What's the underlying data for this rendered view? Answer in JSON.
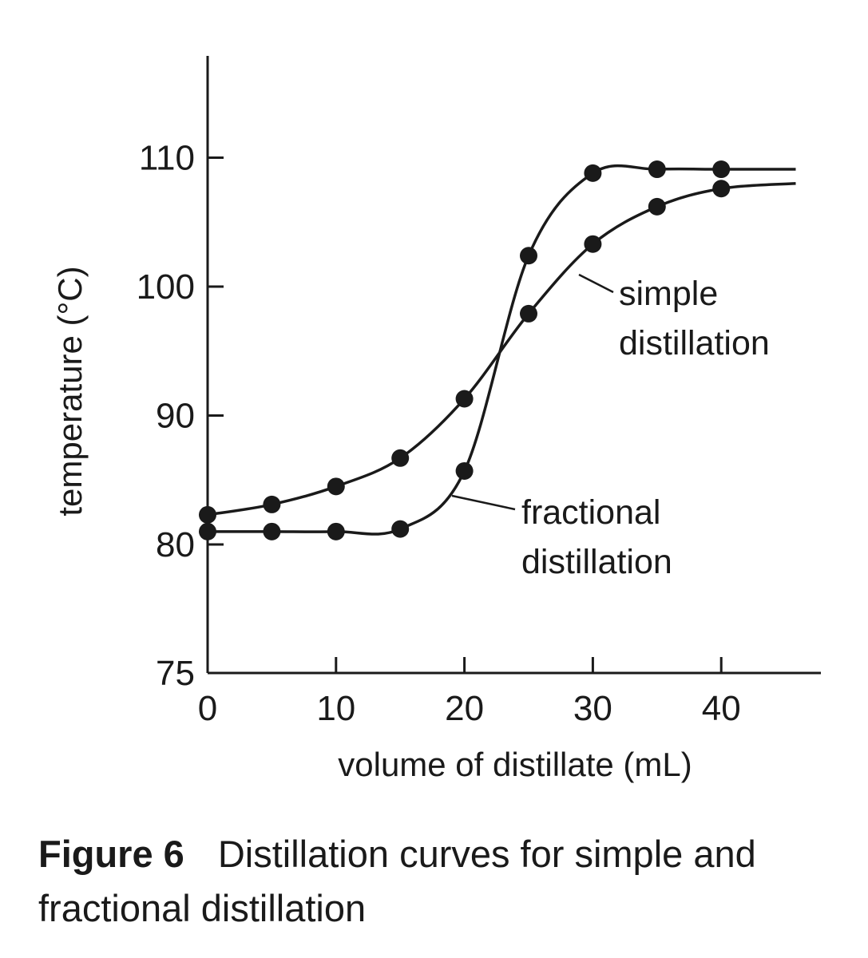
{
  "chart_data": {
    "type": "line",
    "xlabel": "volume of distillate (mL)",
    "ylabel": "temperature (°C)",
    "xlim": [
      0,
      48
    ],
    "ylim": [
      75,
      120
    ],
    "x_ticks": [
      0,
      10,
      20,
      30,
      40
    ],
    "y_ticks": [
      75,
      80,
      90,
      100,
      110
    ],
    "grid": false,
    "legend": "none",
    "series": [
      {
        "name": "simple distillation",
        "x": [
          0,
          5,
          10,
          15,
          20,
          25,
          30,
          35,
          40
        ],
        "y": [
          82.3,
          83.1,
          84.5,
          86.7,
          91.3,
          97.9,
          103.3,
          106.2,
          107.6
        ]
      },
      {
        "name": "fractional distillation",
        "x": [
          0,
          5,
          10,
          15,
          20,
          25,
          30,
          35,
          40
        ],
        "y": [
          81.0,
          81.0,
          81.0,
          81.2,
          85.7,
          102.4,
          108.8,
          109.1,
          109.1
        ]
      }
    ],
    "annotations": [
      {
        "target_series": 0,
        "lines": [
          "simple",
          "distillation"
        ]
      },
      {
        "target_series": 1,
        "lines": [
          "fractional",
          "distillation"
        ]
      }
    ]
  },
  "caption": {
    "label": "Figure 6",
    "text": "Distillation curves for simple and fractional distillation"
  },
  "colors": {
    "ink": "#1a1a1a",
    "background": "#ffffff"
  }
}
